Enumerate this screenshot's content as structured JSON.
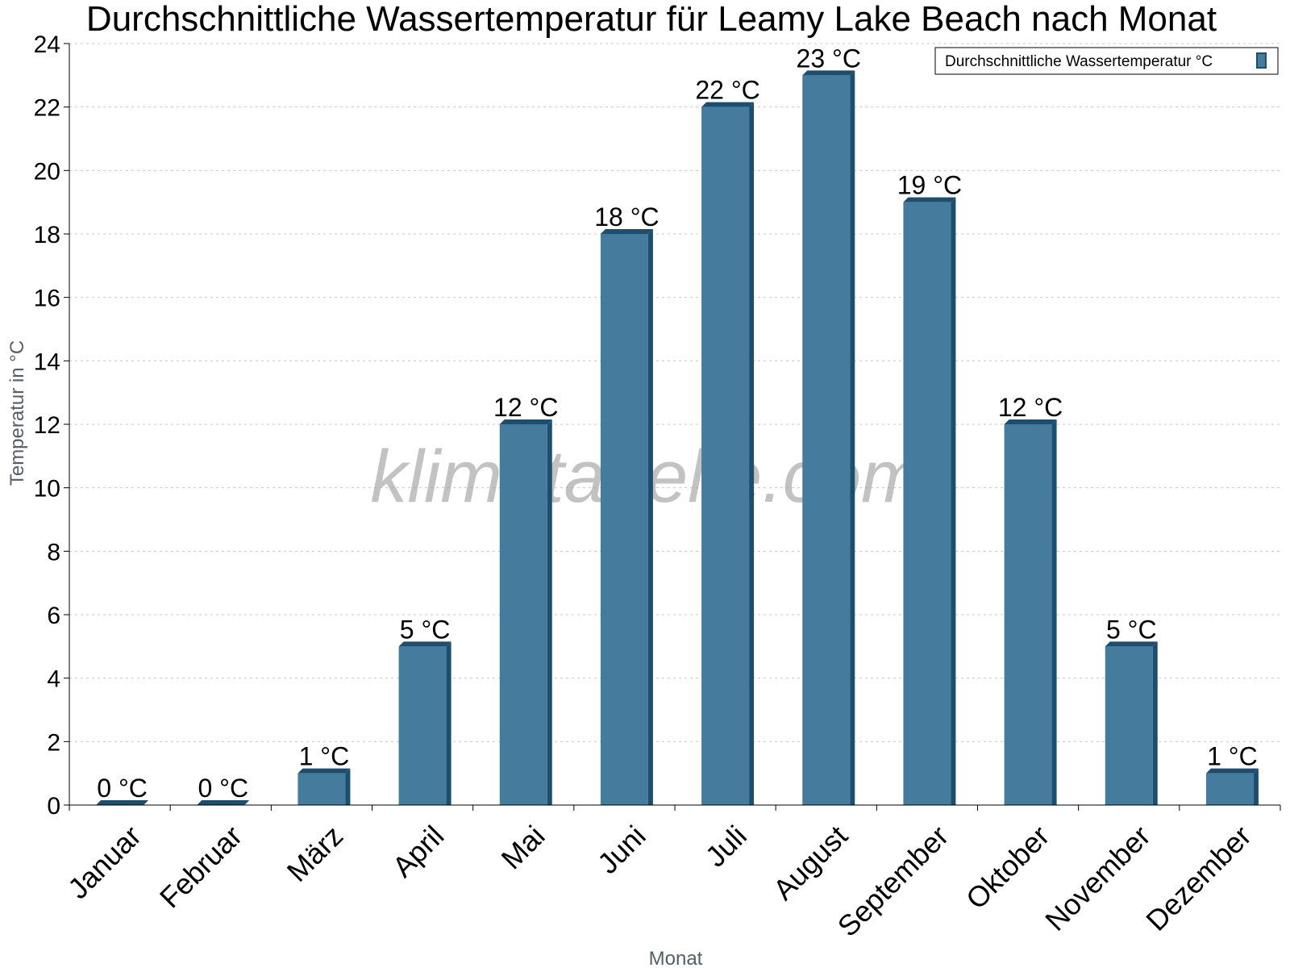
{
  "chart_data": {
    "type": "bar",
    "title": "Durchschnittliche Wassertemperatur für Leamy Lake Beach nach Monat",
    "xlabel": "Monat",
    "ylabel": "Temperatur in °C",
    "categories": [
      "Januar",
      "Februar",
      "März",
      "April",
      "Mai",
      "Juni",
      "Juli",
      "August",
      "September",
      "Oktober",
      "November",
      "Dezember"
    ],
    "series": [
      {
        "name": "Durchschnittliche Wassertemperatur °C",
        "values": [
          0,
          0,
          1,
          5,
          12,
          18,
          22,
          23,
          19,
          12,
          5,
          1
        ],
        "data_labels": [
          "0 °C",
          "0 °C",
          "1 °C",
          "5 °C",
          "12 °C",
          "18 °C",
          "22 °C",
          "23 °C",
          "19 °C",
          "12 °C",
          "5 °C",
          "1 °C"
        ]
      }
    ],
    "ylim": [
      0,
      24
    ],
    "yticks": [
      0,
      2,
      4,
      6,
      8,
      10,
      12,
      14,
      16,
      18,
      20,
      22,
      24
    ],
    "grid": true,
    "legend_position": "top-right",
    "colors": {
      "bar": "#457b9d",
      "bar_dark": "#1d4e6e",
      "grid": "#c8c8c8",
      "axis": "#000000"
    }
  },
  "watermark": "klimatabelle.com"
}
